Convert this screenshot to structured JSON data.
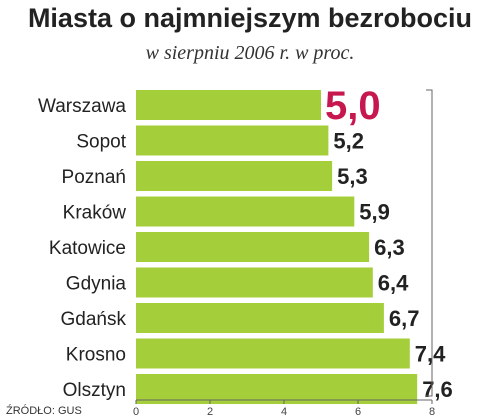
{
  "chart_data": {
    "type": "bar",
    "orientation": "horizontal",
    "title": "Miasta o najmniejszym bezrobociu",
    "subtitle": "w sierpniu 2006 r. w proc.",
    "categories": [
      "Warszawa",
      "Sopot",
      "Poznań",
      "Kraków",
      "Katowice",
      "Gdynia",
      "Gdańsk",
      "Krosno",
      "Olsztyn"
    ],
    "values": [
      5.0,
      5.2,
      5.3,
      5.9,
      6.3,
      6.4,
      6.7,
      7.4,
      7.6
    ],
    "value_labels": [
      "5,0",
      "5,2",
      "5,3",
      "5,9",
      "6,3",
      "6,4",
      "6,7",
      "7,4",
      "7,6"
    ],
    "xlim": [
      0,
      8
    ],
    "xticks": [
      "0",
      "2",
      "4",
      "6",
      "8"
    ],
    "highlight_index": 0,
    "grid": false,
    "source": "ŹRÓDŁO: GUS"
  },
  "colors": {
    "bar": "#a4cf3a",
    "highlight_value": "#c7174f",
    "text": "#222222",
    "axis": "#666666"
  }
}
